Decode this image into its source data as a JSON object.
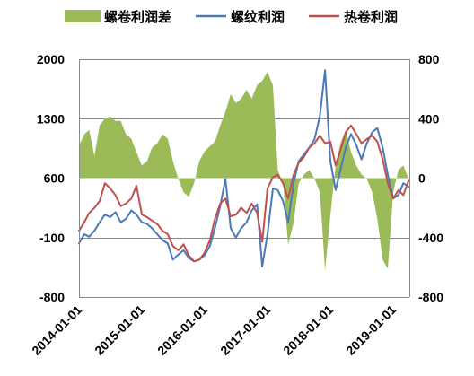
{
  "chart_data": {
    "type": "line",
    "legend_position": "top",
    "grid": true,
    "x_ticks": [
      "2014-01-01",
      "2015-01-01",
      "2016-01-01",
      "2017-01-01",
      "2018-01-01",
      "2019-01-01"
    ],
    "y_left": {
      "range": [
        -800,
        2000
      ],
      "ticks": [
        2000,
        1300,
        600,
        -100,
        -800
      ]
    },
    "y_right": {
      "range": [
        -800,
        800
      ],
      "ticks": [
        800,
        400,
        0,
        -400,
        -800
      ]
    },
    "x": [
      "2014-01-01",
      "2014-02-01",
      "2014-03-01",
      "2014-04-01",
      "2014-05-01",
      "2014-06-01",
      "2014-07-01",
      "2014-08-01",
      "2014-09-01",
      "2014-10-01",
      "2014-11-01",
      "2014-12-01",
      "2015-01-01",
      "2015-02-01",
      "2015-03-01",
      "2015-04-01",
      "2015-05-01",
      "2015-06-01",
      "2015-07-01",
      "2015-08-01",
      "2015-09-01",
      "2015-10-01",
      "2015-11-01",
      "2015-12-01",
      "2016-01-01",
      "2016-02-01",
      "2016-03-01",
      "2016-04-01",
      "2016-05-01",
      "2016-06-01",
      "2016-07-01",
      "2016-08-01",
      "2016-09-01",
      "2016-10-01",
      "2016-11-01",
      "2016-12-01",
      "2017-01-01",
      "2017-02-01",
      "2017-03-01",
      "2017-04-01",
      "2017-05-01",
      "2017-06-01",
      "2017-07-01",
      "2017-08-01",
      "2017-09-01",
      "2017-10-01",
      "2017-11-01",
      "2017-12-01",
      "2018-01-01",
      "2018-02-01",
      "2018-03-01",
      "2018-04-01",
      "2018-05-01",
      "2018-06-01",
      "2018-07-01",
      "2018-08-01",
      "2018-09-01",
      "2018-10-01",
      "2018-11-01",
      "2018-12-01",
      "2019-01-01",
      "2019-02-01",
      "2019-03-01",
      "2019-04-01"
    ],
    "series": [
      {
        "name": "螺卷利润差",
        "type": "area",
        "axis": "right",
        "color": "#9bbb59",
        "values": [
          220,
          295,
          325,
          150,
          355,
          400,
          415,
          385,
          385,
          295,
          265,
          175,
          85,
          115,
          205,
          235,
          295,
          265,
          115,
          -5,
          -95,
          -125,
          -35,
          115,
          180,
          215,
          245,
          355,
          445,
          565,
          505,
          535,
          595,
          535,
          625,
          655,
          715,
          625,
          55,
          -35,
          -450,
          -300,
          -35,
          25,
          55,
          -5,
          -95,
          -620,
          -250,
          85,
          235,
          325,
          175,
          85,
          25,
          -5,
          -95,
          -275,
          -550,
          -610,
          -95,
          55,
          85,
          -5
        ]
      },
      {
        "name": "螺纹利润",
        "type": "line",
        "axis": "left",
        "color": "#4a7ab8",
        "values": [
          -170,
          -60,
          -90,
          -20,
          80,
          170,
          140,
          200,
          80,
          120,
          220,
          170,
          80,
          60,
          10,
          -60,
          -130,
          -170,
          -360,
          -300,
          -250,
          -340,
          -380,
          -360,
          -310,
          -200,
          10,
          270,
          590,
          10,
          -100,
          10,
          80,
          220,
          290,
          -440,
          -60,
          480,
          460,
          330,
          80,
          540,
          800,
          880,
          960,
          1060,
          1330,
          1870,
          800,
          460,
          700,
          960,
          1120,
          990,
          820,
          1010,
          1140,
          1190,
          960,
          640,
          360,
          400,
          540,
          500
        ]
      },
      {
        "name": "热卷利润",
        "type": "line",
        "axis": "left",
        "color": "#c0504d",
        "values": [
          -20,
          80,
          190,
          250,
          330,
          540,
          480,
          400,
          270,
          300,
          360,
          510,
          170,
          140,
          100,
          60,
          -20,
          -60,
          -200,
          -250,
          -180,
          -310,
          -380,
          -360,
          -280,
          -130,
          120,
          300,
          360,
          150,
          170,
          250,
          190,
          300,
          190,
          -150,
          480,
          610,
          640,
          540,
          360,
          640,
          780,
          850,
          960,
          1010,
          1100,
          1010,
          1030,
          750,
          930,
          1140,
          1220,
          1120,
          1010,
          1060,
          1100,
          1030,
          820,
          540,
          360,
          460,
          400,
          570
        ]
      }
    ]
  }
}
